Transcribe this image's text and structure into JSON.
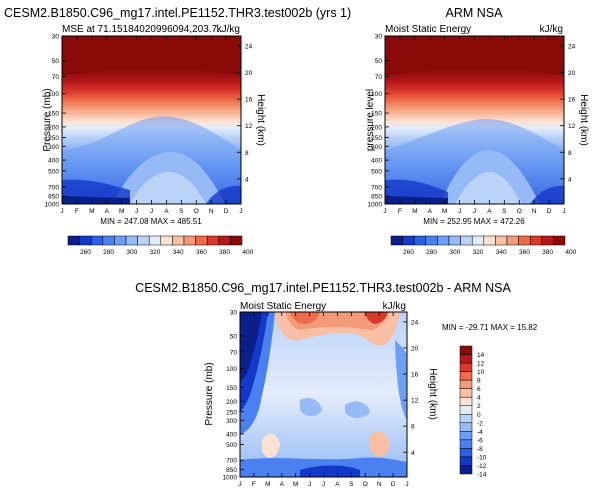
{
  "figure": {
    "title": "CESM2.B1850.C96_mg17.intel.PE1152.THR3.test002b (yrs 1)",
    "diff_title": "CESM2.B1850.C96_mg17.intel.PE1152.THR3.test002b - ARM NSA"
  },
  "palette": {
    "levels": [
      "#0b1f8a",
      "#1438c9",
      "#2b5fe6",
      "#4a80f0",
      "#6f9ff2",
      "#95baf5",
      "#bcd3f8",
      "#e3ecfb",
      "#fbe2d5",
      "#f8bfa4",
      "#f39b79",
      "#ec6b49",
      "#d9392a",
      "#b5161a",
      "#8a0a0a"
    ]
  },
  "chart_data": [
    {
      "type": "heatmap",
      "title": "MSE at 71.15184020996094,203.7..",
      "title_right": "kJ/kg",
      "ylabel": "Pressure (mb)",
      "ylabel_right": "Height (km)",
      "x_ticks": [
        "J",
        "F",
        "M",
        "A",
        "M",
        "J",
        "J",
        "A",
        "S",
        "O",
        "N",
        "D",
        "J"
      ],
      "y_ticks": [
        "30",
        "50",
        "70",
        "100",
        "150",
        "200",
        "250",
        "300",
        "400",
        "500",
        "700",
        "850",
        "1000"
      ],
      "y_ticks_right": [
        "24",
        "20",
        "16",
        "12",
        "8",
        "4"
      ],
      "stats": "MIN = 247.08 MAX = 485.51",
      "colorbar_labels": [
        "260",
        "280",
        "300",
        "320",
        "340",
        "360",
        "380",
        "400"
      ]
    },
    {
      "type": "heatmap",
      "title": "Moist Static Energy",
      "title_center": "ARM NSA",
      "title_right": "kJ/kg",
      "ylabel": "pressure level",
      "ylabel_right": "Height (km)",
      "x_ticks": [
        "J",
        "F",
        "M",
        "A",
        "M",
        "J",
        "J",
        "A",
        "S",
        "O",
        "N",
        "D",
        "J"
      ],
      "y_ticks": [
        "30",
        "50",
        "70",
        "100",
        "150",
        "200",
        "250",
        "300",
        "400",
        "500",
        "700",
        "850",
        "1000"
      ],
      "y_ticks_right": [
        "24",
        "20",
        "16",
        "12",
        "8",
        "4"
      ],
      "stats": "MIN = 252.95 MAX = 472.26",
      "colorbar_labels": [
        "260",
        "280",
        "300",
        "320",
        "340",
        "360",
        "380",
        "400"
      ]
    },
    {
      "type": "heatmap",
      "title": "Moist Static Energy",
      "title_right": "kJ/kg",
      "ylabel": "Pressure (mb)",
      "ylabel_right": "Height (km)",
      "x_ticks": [
        "J",
        "F",
        "M",
        "A",
        "M",
        "J",
        "J",
        "A",
        "S",
        "O",
        "N",
        "D",
        "J"
      ],
      "y_ticks": [
        "30",
        "50",
        "70",
        "100",
        "150",
        "200",
        "250",
        "300",
        "400",
        "500",
        "700",
        "850",
        "1000"
      ],
      "y_ticks_right": [
        "24",
        "20",
        "16",
        "12",
        "8",
        "4"
      ],
      "stats": "MIN = -29.71 MAX = 15.82",
      "colorbar_labels": [
        "14",
        "12",
        "10",
        "8",
        "6",
        "4",
        "2",
        "0",
        "-2",
        "-4",
        "-6",
        "-8",
        "-10",
        "-12",
        "-14"
      ]
    }
  ]
}
